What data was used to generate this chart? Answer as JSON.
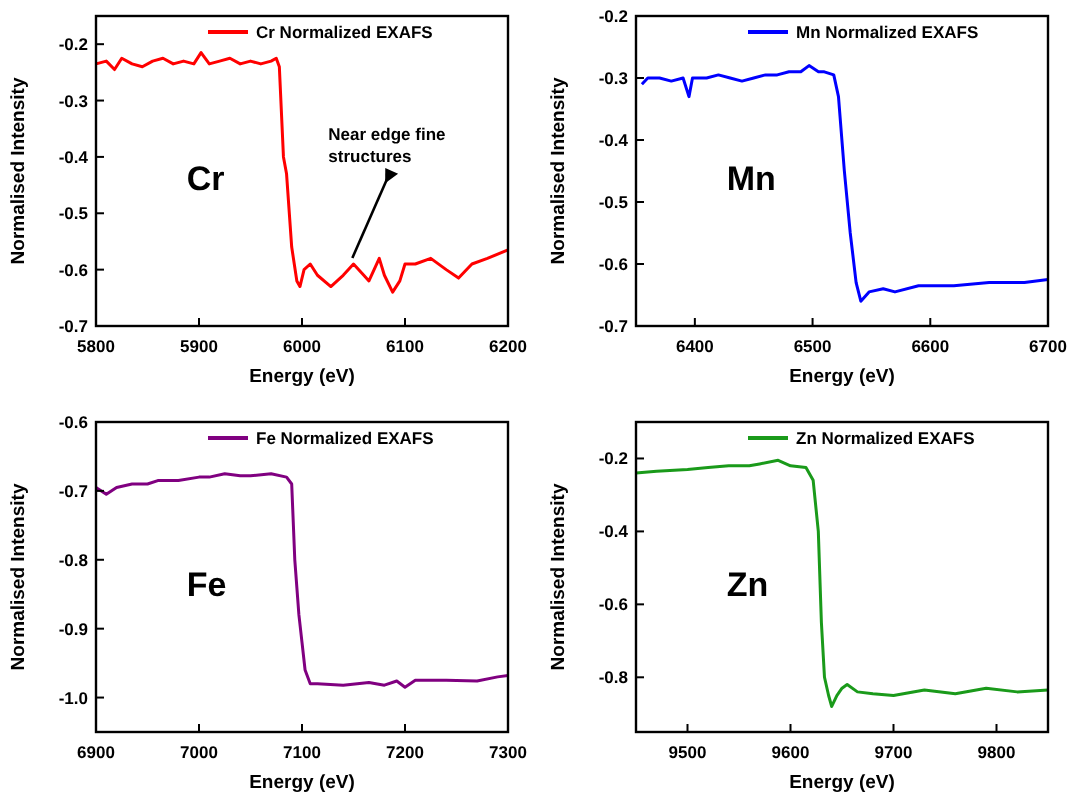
{
  "chart_data": [
    {
      "type": "line",
      "xlabel": "Energy (eV)",
      "ylabel": "Normalised Intensity",
      "xlim": [
        5800,
        6200
      ],
      "xticks": [
        5800,
        5900,
        6000,
        6100,
        6200
      ],
      "ylim": [
        -0.7,
        -0.15
      ],
      "yticks": [
        -0.7,
        -0.6,
        -0.5,
        -0.4,
        -0.3,
        -0.2
      ],
      "legend": "top right",
      "annotations": [
        "Cr",
        {
          "text": "Near edge fine structures",
          "x": 6045,
          "y": -0.59
        }
      ],
      "series": [
        {
          "name": "Cr Normalized EXAFS",
          "color": "#ff0000",
          "x": [
            5800,
            5810,
            5818,
            5825,
            5835,
            5845,
            5855,
            5865,
            5875,
            5885,
            5895,
            5902,
            5910,
            5920,
            5930,
            5940,
            5950,
            5960,
            5970,
            5975,
            5978,
            5982,
            5985,
            5990,
            5995,
            5998,
            6002,
            6008,
            6015,
            6028,
            6040,
            6050,
            6060,
            6065,
            6075,
            6080,
            6088,
            6095,
            6100,
            6110,
            6125,
            6140,
            6152,
            6165,
            6180,
            6200
          ],
          "values": [
            -0.235,
            -0.23,
            -0.245,
            -0.225,
            -0.235,
            -0.24,
            -0.23,
            -0.225,
            -0.235,
            -0.23,
            -0.235,
            -0.215,
            -0.235,
            -0.23,
            -0.225,
            -0.235,
            -0.23,
            -0.235,
            -0.23,
            -0.225,
            -0.24,
            -0.4,
            -0.43,
            -0.56,
            -0.62,
            -0.63,
            -0.6,
            -0.59,
            -0.61,
            -0.63,
            -0.61,
            -0.59,
            -0.61,
            -0.62,
            -0.58,
            -0.61,
            -0.64,
            -0.62,
            -0.59,
            -0.59,
            -0.58,
            -0.6,
            -0.615,
            -0.59,
            -0.58,
            -0.565
          ]
        }
      ]
    },
    {
      "type": "line",
      "xlabel": "Energy (eV)",
      "ylabel": "Normalised Intensity",
      "xlim": [
        6350,
        6700
      ],
      "xticks": [
        6400,
        6500,
        6600,
        6700
      ],
      "ylim": [
        -0.7,
        -0.2
      ],
      "yticks": [
        -0.7,
        -0.6,
        -0.5,
        -0.4,
        -0.3,
        -0.2
      ],
      "legend": "top right",
      "annotations": [
        "Mn"
      ],
      "series": [
        {
          "name": "Mn Normalized EXAFS",
          "color": "#0000ff",
          "x": [
            6355,
            6360,
            6370,
            6380,
            6390,
            6395,
            6398,
            6410,
            6420,
            6430,
            6440,
            6450,
            6460,
            6470,
            6480,
            6490,
            6497,
            6505,
            6510,
            6518,
            6522,
            6527,
            6532,
            6537,
            6541,
            6548,
            6560,
            6570,
            6590,
            6620,
            6650,
            6680,
            6700
          ],
          "values": [
            -0.31,
            -0.3,
            -0.3,
            -0.305,
            -0.3,
            -0.33,
            -0.3,
            -0.3,
            -0.295,
            -0.3,
            -0.305,
            -0.3,
            -0.295,
            -0.295,
            -0.29,
            -0.29,
            -0.28,
            -0.29,
            -0.29,
            -0.295,
            -0.33,
            -0.45,
            -0.55,
            -0.63,
            -0.66,
            -0.645,
            -0.64,
            -0.645,
            -0.635,
            -0.635,
            -0.63,
            -0.63,
            -0.625
          ]
        }
      ]
    },
    {
      "type": "line",
      "xlabel": "Energy (eV)",
      "ylabel": "Normalised Intensity",
      "xlim": [
        6900,
        7300
      ],
      "xticks": [
        6900,
        7000,
        7100,
        7200,
        7300
      ],
      "ylim": [
        -1.05,
        -0.6
      ],
      "yticks": [
        {
          "value": -1.0,
          "label": "-1.0"
        },
        -0.9,
        -0.8,
        -0.7,
        {
          "value": -0.6,
          "label": "-0.6"
        }
      ],
      "legend": "top right",
      "annotations": [
        "Fe"
      ],
      "series": [
        {
          "name": "Fe Normalized EXAFS",
          "color": "#800080",
          "x": [
            6900,
            6910,
            6920,
            6935,
            6950,
            6960,
            6980,
            7000,
            7010,
            7025,
            7040,
            7050,
            7070,
            7085,
            7090,
            7093,
            7097,
            7100,
            7103,
            7108,
            7115,
            7140,
            7165,
            7180,
            7192,
            7200,
            7210,
            7240,
            7270,
            7290,
            7300
          ],
          "values": [
            -0.695,
            -0.705,
            -0.695,
            -0.69,
            -0.69,
            -0.685,
            -0.685,
            -0.68,
            -0.68,
            -0.675,
            -0.678,
            -0.678,
            -0.675,
            -0.68,
            -0.69,
            -0.8,
            -0.88,
            -0.92,
            -0.96,
            -0.98,
            -0.98,
            -0.982,
            -0.978,
            -0.982,
            -0.976,
            -0.985,
            -0.975,
            -0.975,
            -0.976,
            -0.97,
            -0.968
          ]
        }
      ]
    },
    {
      "type": "line",
      "xlabel": "Energy (eV)",
      "ylabel": "Normalised Intensity",
      "xlim": [
        9450,
        9850
      ],
      "xticks": [
        9500,
        9600,
        9700,
        9800
      ],
      "ylim": [
        -0.95,
        -0.1
      ],
      "yticks": [
        -0.8,
        -0.6,
        -0.4,
        -0.2
      ],
      "legend": "top right",
      "annotations": [
        "Zn"
      ],
      "series": [
        {
          "name": "Zn Normalized EXAFS",
          "color": "#1a9a1a",
          "x": [
            9450,
            9470,
            9500,
            9520,
            9540,
            9560,
            9570,
            9588,
            9600,
            9615,
            9622,
            9627,
            9630,
            9633,
            9637,
            9640,
            9645,
            9650,
            9655,
            9665,
            9680,
            9700,
            9730,
            9760,
            9790,
            9820,
            9850
          ],
          "values": [
            -0.24,
            -0.235,
            -0.23,
            -0.225,
            -0.22,
            -0.22,
            -0.215,
            -0.205,
            -0.22,
            -0.225,
            -0.26,
            -0.4,
            -0.65,
            -0.8,
            -0.85,
            -0.88,
            -0.85,
            -0.83,
            -0.82,
            -0.84,
            -0.845,
            -0.85,
            -0.835,
            -0.845,
            -0.83,
            -0.84,
            -0.835
          ]
        }
      ]
    }
  ]
}
